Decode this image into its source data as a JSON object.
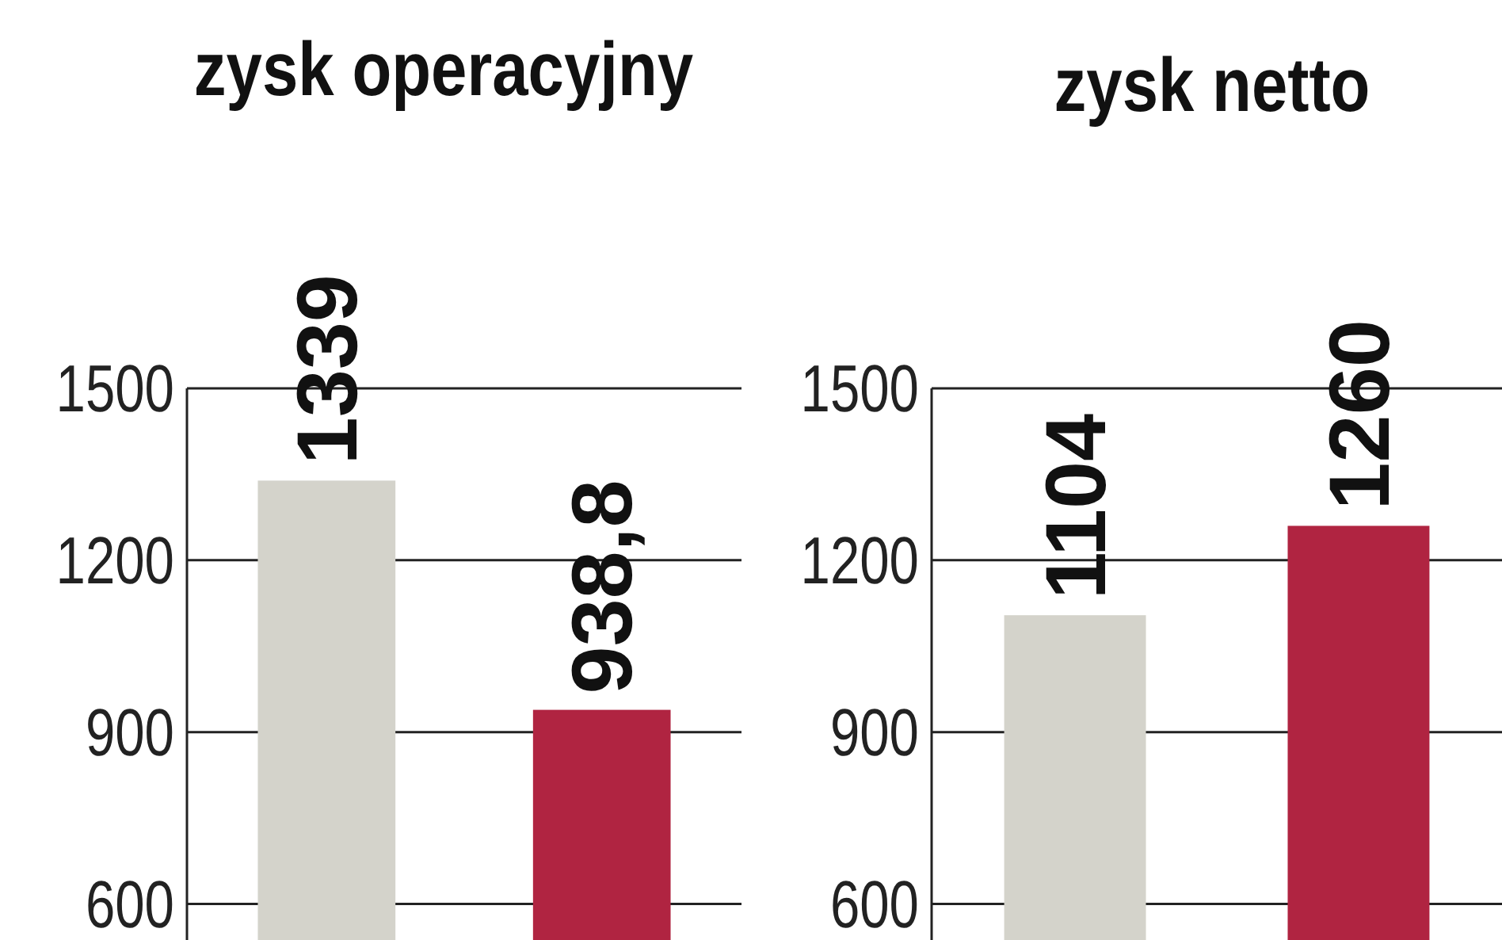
{
  "chart_data": [
    {
      "type": "bar",
      "title": "zysk operacyjny",
      "categories": [
        null,
        null
      ],
      "values": [
        1339,
        938.8
      ],
      "colors": [
        "#d4d3cb",
        "#b02441"
      ],
      "value_labels": [
        "1339",
        "938,8"
      ],
      "ylim": [
        537,
        1500
      ],
      "yticks": [
        600,
        900,
        1200,
        1500
      ],
      "grid": "y"
    },
    {
      "type": "bar",
      "title": "zysk netto",
      "categories": [
        null,
        null
      ],
      "values": [
        1104,
        1260
      ],
      "colors": [
        "#d4d3cb",
        "#b02441"
      ],
      "value_labels": [
        "1104",
        "1260"
      ],
      "ylim": [
        537,
        1500
      ],
      "yticks": [
        600,
        900,
        1200,
        1500
      ],
      "grid": "y"
    }
  ]
}
